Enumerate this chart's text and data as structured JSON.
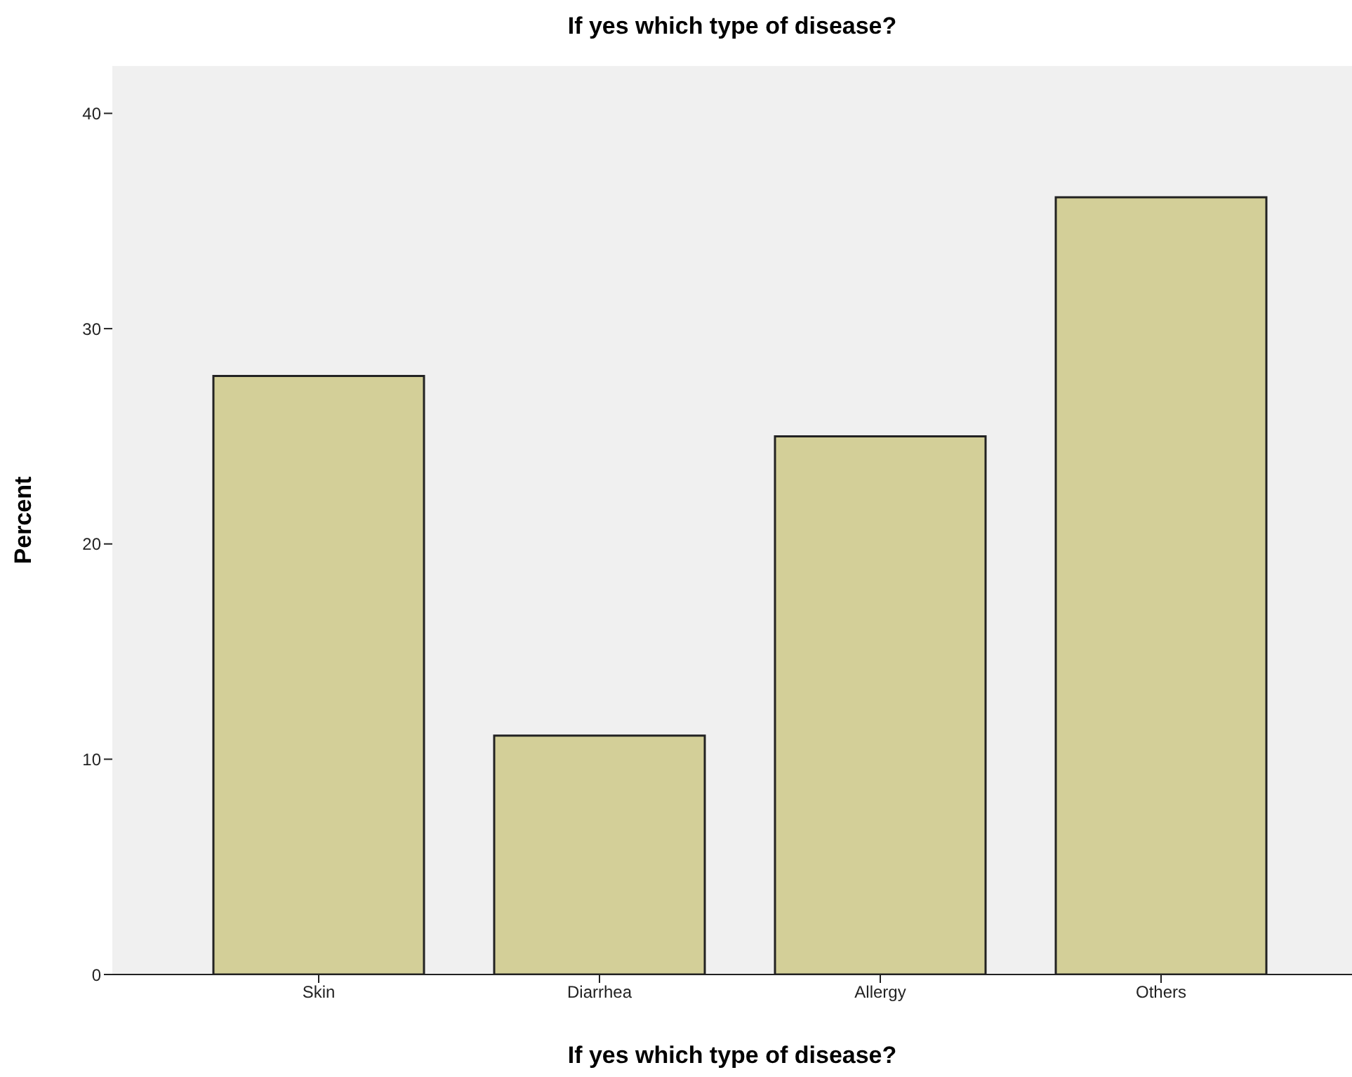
{
  "chart_data": {
    "type": "bar",
    "title": "If yes which type of disease?",
    "xlabel": "If yes which type of disease?",
    "ylabel": "Percent",
    "categories": [
      "Skin",
      "Diarrhea",
      "Allergy",
      "Others"
    ],
    "values": [
      27.8,
      11.1,
      25.0,
      36.1
    ],
    "color": "#d3cf98",
    "ylim": [
      0,
      42.2
    ],
    "yticks": [
      0,
      10,
      20,
      30,
      40
    ],
    "grid": false,
    "legend": false
  }
}
